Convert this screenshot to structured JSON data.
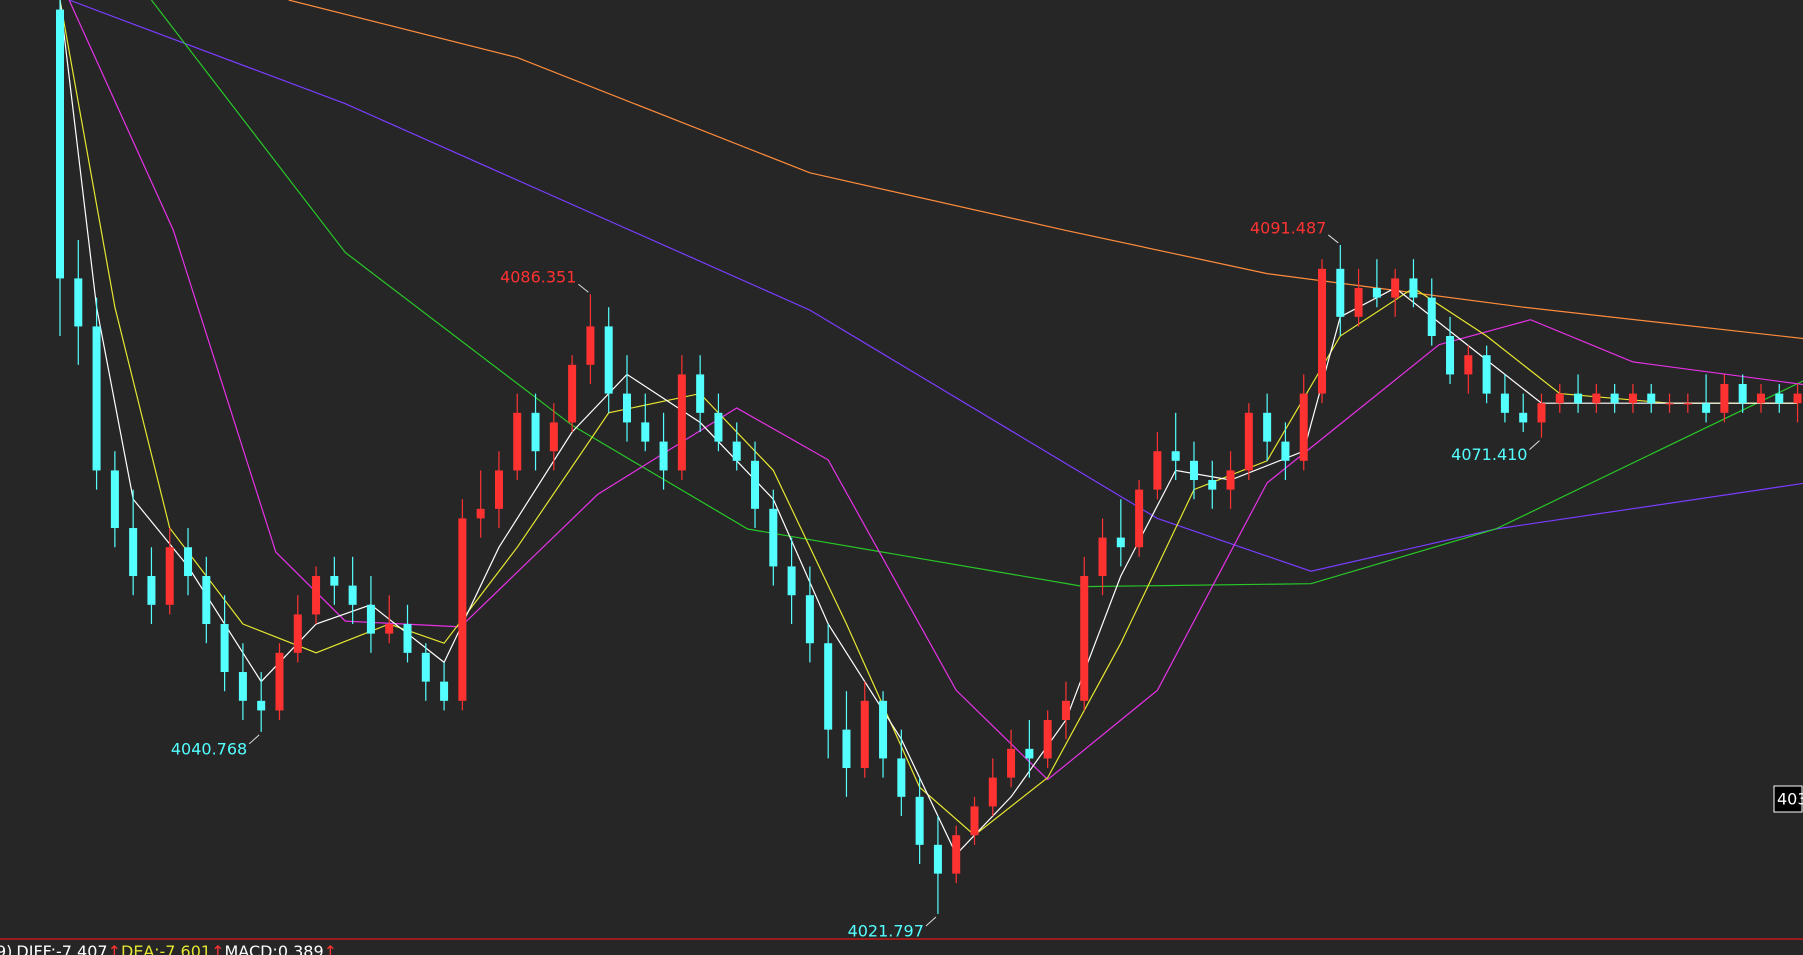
{
  "chart_data": {
    "type": "candlestick",
    "ylim": [
      4019.4,
      4117
    ],
    "up_color": "#ff3232",
    "down_color": "#54ffff",
    "open": [
      4116,
      4088,
      4083,
      4068,
      4062,
      4057,
      4054,
      4060,
      4057,
      4052,
      4047,
      4044,
      4043,
      4049,
      4053,
      4057,
      4056,
      4054,
      4051,
      4052,
      4049,
      4046,
      4044,
      4063,
      4064,
      4068,
      4074,
      4070,
      4073,
      4079,
      4083,
      4076,
      4073,
      4071,
      4068,
      4078,
      4074,
      4071,
      4069,
      4064,
      4058,
      4055,
      4050,
      4041,
      4037,
      4044,
      4038,
      4034,
      4029,
      4026,
      4030,
      4033,
      4036,
      4039,
      4038,
      4042,
      4044,
      4057,
      4061,
      4060,
      4066,
      4070,
      4069,
      4067,
      4066,
      4068,
      4074,
      4071,
      4069,
      4076,
      4089,
      4084,
      4087,
      4086,
      4088,
      4086,
      4082,
      4078,
      4080,
      4076,
      4074,
      4073,
      4075,
      4076,
      4075,
      4076,
      4075,
      4076,
      4075,
      4075,
      4075,
      4074,
      4077,
      4075,
      4076,
      4075
    ],
    "high": [
      4117,
      4092,
      4086,
      4070,
      4066,
      4060,
      4062,
      4062,
      4059,
      4055,
      4050,
      4047,
      4050,
      4055,
      4058,
      4059,
      4059,
      4057,
      4055,
      4054,
      4050,
      4048,
      4065,
      4068,
      4070,
      4076,
      4076,
      4075,
      4080,
      4086.351,
      4085,
      4080,
      4076,
      4074,
      4080,
      4080,
      4076,
      4073,
      4071,
      4066,
      4061,
      4058,
      4052,
      4045,
      4046,
      4045,
      4041,
      4036,
      4032,
      4031,
      4034,
      4038,
      4041,
      4042,
      4043,
      4046,
      4059,
      4063,
      4065,
      4067,
      4072,
      4074,
      4071,
      4069,
      4070,
      4075,
      4076,
      4073,
      4078,
      4090,
      4091.487,
      4089,
      4090,
      4089,
      4090,
      4088,
      4084,
      4081,
      4081,
      4078,
      4076,
      4076,
      4077,
      4078,
      4077,
      4077,
      4077,
      4077,
      4076,
      4076,
      4078,
      4078,
      4078,
      4077,
      4077,
      4077
    ],
    "low": [
      4082,
      4079,
      4066,
      4060,
      4055,
      4052,
      4053,
      4055,
      4050,
      4045,
      4042,
      4040.768,
      4042,
      4048,
      4052,
      4054,
      4052,
      4049,
      4050,
      4048,
      4044,
      4043,
      4043,
      4061,
      4062,
      4067,
      4068,
      4068,
      4072,
      4077,
      4074,
      4071,
      4070,
      4066,
      4067,
      4072,
      4070,
      4068,
      4062,
      4056,
      4052,
      4048,
      4038,
      4034,
      4036,
      4036,
      4032,
      4027,
      4021.797,
      4025,
      4029,
      4032,
      4035,
      4036,
      4037,
      4040,
      4043,
      4055,
      4058,
      4059,
      4065,
      4067,
      4065,
      4064,
      4064,
      4067,
      4069,
      4067,
      4068,
      4075,
      4082,
      4083,
      4085,
      4084,
      4085,
      4081,
      4077,
      4076,
      4075,
      4073,
      4072,
      4071.41,
      4074,
      4074,
      4074,
      4074,
      4074,
      4074,
      4074,
      4074,
      4073,
      4073,
      4074,
      4074,
      4074,
      4073
    ],
    "close": [
      4088,
      4083,
      4068,
      4062,
      4057,
      4054,
      4060,
      4057,
      4052,
      4047,
      4044,
      4043,
      4049,
      4053,
      4057,
      4056,
      4054,
      4051,
      4052,
      4049,
      4046,
      4044,
      4063,
      4064,
      4068,
      4074,
      4070,
      4073,
      4079,
      4083,
      4076,
      4073,
      4071,
      4068,
      4078,
      4074,
      4071,
      4069,
      4064,
      4058,
      4055,
      4050,
      4041,
      4037,
      4044,
      4038,
      4034,
      4029,
      4026,
      4030,
      4033,
      4036,
      4039,
      4038,
      4042,
      4044,
      4057,
      4061,
      4060,
      4066,
      4070,
      4069,
      4067,
      4066,
      4068,
      4074,
      4071,
      4069,
      4076,
      4089,
      4084,
      4087,
      4086,
      4088,
      4086,
      4082,
      4078,
      4080,
      4076,
      4074,
      4073,
      4075,
      4076,
      4075,
      4076,
      4075,
      4076,
      4075,
      4075,
      4075,
      4074,
      4077,
      4075,
      4076,
      4075,
      4076
    ],
    "lines": [
      {
        "color": "#ff8c3c",
        "x": [
          12.5,
          25,
          41,
          55,
          66,
          80,
          95.5
        ],
        "values": [
          4117,
          4111,
          4099,
          4093,
          4088.5,
          4085,
          4081.7
        ]
      },
      {
        "color": "#7a3cff",
        "x": [
          0.5,
          15.6,
          41,
          60,
          68.4,
          78.5,
          95.5
        ],
        "values": [
          4117,
          4106.2,
          4084.7,
          4063,
          4057.5,
          4061.9,
          4066.7
        ]
      },
      {
        "color": "#28c828",
        "x": [
          5,
          15.6,
          28,
          37.6,
          56,
          68.4,
          78.5,
          95.5
        ],
        "values": [
          4117,
          4090.7,
          4072.7,
          4061.9,
          4055.9,
          4056.2,
          4061.9,
          4077.5
        ]
      },
      {
        "color": "#e632e6",
        "x": [
          0.5,
          6.2,
          11.8,
          15.6,
          21.9,
          29.4,
          37,
          42,
          49,
          54,
          60,
          66,
          75.4,
          80.4,
          86,
          95.5
        ],
        "values": [
          4117,
          4093,
          4059.5,
          4052.3,
          4051.7,
          4065.5,
          4074.5,
          4069.1,
          4045.1,
          4035.8,
          4045.1,
          4066.7,
          4081.1,
          4083.7,
          4079.3,
          4076.9
        ]
      },
      {
        "color": "#e6e632",
        "x": [
          0,
          3,
          6,
          10,
          14,
          18,
          21,
          25,
          30,
          35,
          39,
          43,
          47,
          50,
          54,
          58,
          62,
          66,
          70,
          74,
          78,
          82,
          88,
          95
        ],
        "values": [
          4117,
          4085,
          4062,
          4052,
          4049,
          4052,
          4050,
          4060,
          4074,
          4076,
          4068,
          4052,
          4035,
          4030,
          4036,
          4050,
          4066,
          4069,
          4082,
          4087,
          4082,
          4076,
          4075,
          4075
        ]
      },
      {
        "color": "#ffffff",
        "x": [
          0,
          2,
          4,
          7,
          11,
          14,
          17,
          21,
          24,
          28,
          31,
          35,
          39,
          42,
          46,
          49,
          52,
          55,
          58,
          61,
          64,
          68,
          70,
          73,
          77,
          81,
          85,
          95
        ],
        "values": [
          4117,
          4085,
          4065,
          4058,
          4046,
          4052,
          4054,
          4048,
          4060,
          4072,
          4078,
          4073,
          4065,
          4052,
          4040,
          4028,
          4034,
          4042,
          4057,
          4068,
          4067,
          4070,
          4084,
          4087,
          4081,
          4075,
          4075,
          4075
        ]
      }
    ],
    "highlights": [
      {
        "value": 4086.351,
        "label": "4086.351"
      },
      {
        "value": 4091.487,
        "label": "4091.487"
      },
      {
        "value": 4040.768,
        "label": "4040.768"
      },
      {
        "value": 4021.797,
        "label": "4021.797"
      },
      {
        "value": 4071.41,
        "label": "4071.410"
      }
    ],
    "footer": {
      "prefix": "9)",
      "arrow": "↑",
      "items": [
        {
          "label": "DIFF:-7.407",
          "color": "#ffffff"
        },
        {
          "label": "DEA:-7.601",
          "color": "#e6e632"
        },
        {
          "label": "MACD:0.389",
          "color": "#ffffff"
        }
      ]
    },
    "price_tag": "403"
  }
}
